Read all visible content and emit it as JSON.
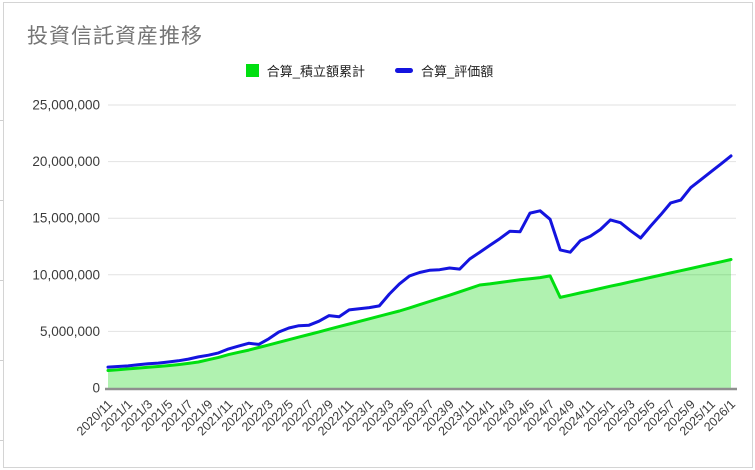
{
  "chart_data": {
    "type": "area",
    "title": "投資信託資産推移",
    "xlabel": "",
    "ylabel": "",
    "ylim": [
      0,
      25000000
    ],
    "grid": true,
    "legend_position": "top-center",
    "x_label_every": 2,
    "x_label_rotation": -45,
    "y_ticks": [
      {
        "value": 0,
        "label": "0"
      },
      {
        "value": 5000000,
        "label": "5,000,000"
      },
      {
        "value": 10000000,
        "label": "10,000,000"
      },
      {
        "value": 15000000,
        "label": "15,000,000"
      },
      {
        "value": 20000000,
        "label": "20,000,000"
      },
      {
        "value": 25000000,
        "label": "25,000,000"
      }
    ],
    "categories": [
      "2020/11",
      "2020/12",
      "2021/1",
      "2021/2",
      "2021/3",
      "2021/4",
      "2021/5",
      "2021/6",
      "2021/7",
      "2021/8",
      "2021/9",
      "2021/10",
      "2021/11",
      "2021/12",
      "2022/1",
      "2022/2",
      "2022/3",
      "2022/4",
      "2022/5",
      "2022/6",
      "2022/7",
      "2022/8",
      "2022/9",
      "2022/10",
      "2022/11",
      "2022/12",
      "2023/1",
      "2023/2",
      "2023/3",
      "2023/4",
      "2023/5",
      "2023/6",
      "2023/7",
      "2023/8",
      "2023/9",
      "2023/10",
      "2023/11",
      "2023/12",
      "2024/1",
      "2024/2",
      "2024/3",
      "2024/4",
      "2024/5",
      "2024/6",
      "2024/7",
      "2024/8",
      "2024/9",
      "2024/10",
      "2024/11",
      "2024/12",
      "2025/1",
      "2025/2",
      "2025/3",
      "2025/4",
      "2025/5",
      "2025/6",
      "2025/7",
      "2025/8",
      "2025/9",
      "2025/10",
      "2025/11",
      "2025/12",
      "2026/1"
    ],
    "series": [
      {
        "name": "合算_積立額累計",
        "style": "area",
        "color": "#00DF10",
        "fill": "rgba(0,212,0,0.31)",
        "legend_swatch": "square",
        "values": [
          1550000,
          1620000,
          1690000,
          1760000,
          1830000,
          1900000,
          1980000,
          2070000,
          2170000,
          2300000,
          2500000,
          2700000,
          2950000,
          3150000,
          3350000,
          3580000,
          3810000,
          4040000,
          4270000,
          4500000,
          4730000,
          4960000,
          5190000,
          5420000,
          5650000,
          5880000,
          6110000,
          6340000,
          6570000,
          6800000,
          7080000,
          7360000,
          7640000,
          7920000,
          8200000,
          8500000,
          8800000,
          9100000,
          9200000,
          9320000,
          9440000,
          9560000,
          9650000,
          9750000,
          9900000,
          8000000,
          8200000,
          8400000,
          8590000,
          8790000,
          8990000,
          9180000,
          9380000,
          9580000,
          9770000,
          9970000,
          10170000,
          10360000,
          10560000,
          10760000,
          10950000,
          11150000,
          11350000
        ]
      },
      {
        "name": "合算_評価額",
        "style": "line",
        "color": "#1414DF",
        "legend_swatch": "line",
        "values": [
          1850000,
          1900000,
          1950000,
          2050000,
          2150000,
          2200000,
          2300000,
          2400000,
          2550000,
          2750000,
          2900000,
          3100000,
          3450000,
          3700000,
          3950000,
          3850000,
          4350000,
          4950000,
          5300000,
          5500000,
          5550000,
          5900000,
          6400000,
          6300000,
          6900000,
          7000000,
          7100000,
          7250000,
          8300000,
          9200000,
          9900000,
          10200000,
          10400000,
          10450000,
          10600000,
          10500000,
          11400000,
          12000000,
          12600000,
          13200000,
          13850000,
          13800000,
          15450000,
          15650000,
          14900000,
          12200000,
          12000000,
          13000000,
          13400000,
          14000000,
          14850000,
          14600000,
          13900000,
          13250000,
          14300000,
          15300000,
          16350000,
          16600000,
          17700000,
          18400000,
          19100000,
          19800000,
          20500000
        ]
      }
    ],
    "colors": {
      "gridline": "#E2E2E2",
      "axis_line": "#8f8f8f",
      "title": "#757575",
      "tick_label": "#3b3b3b"
    }
  }
}
